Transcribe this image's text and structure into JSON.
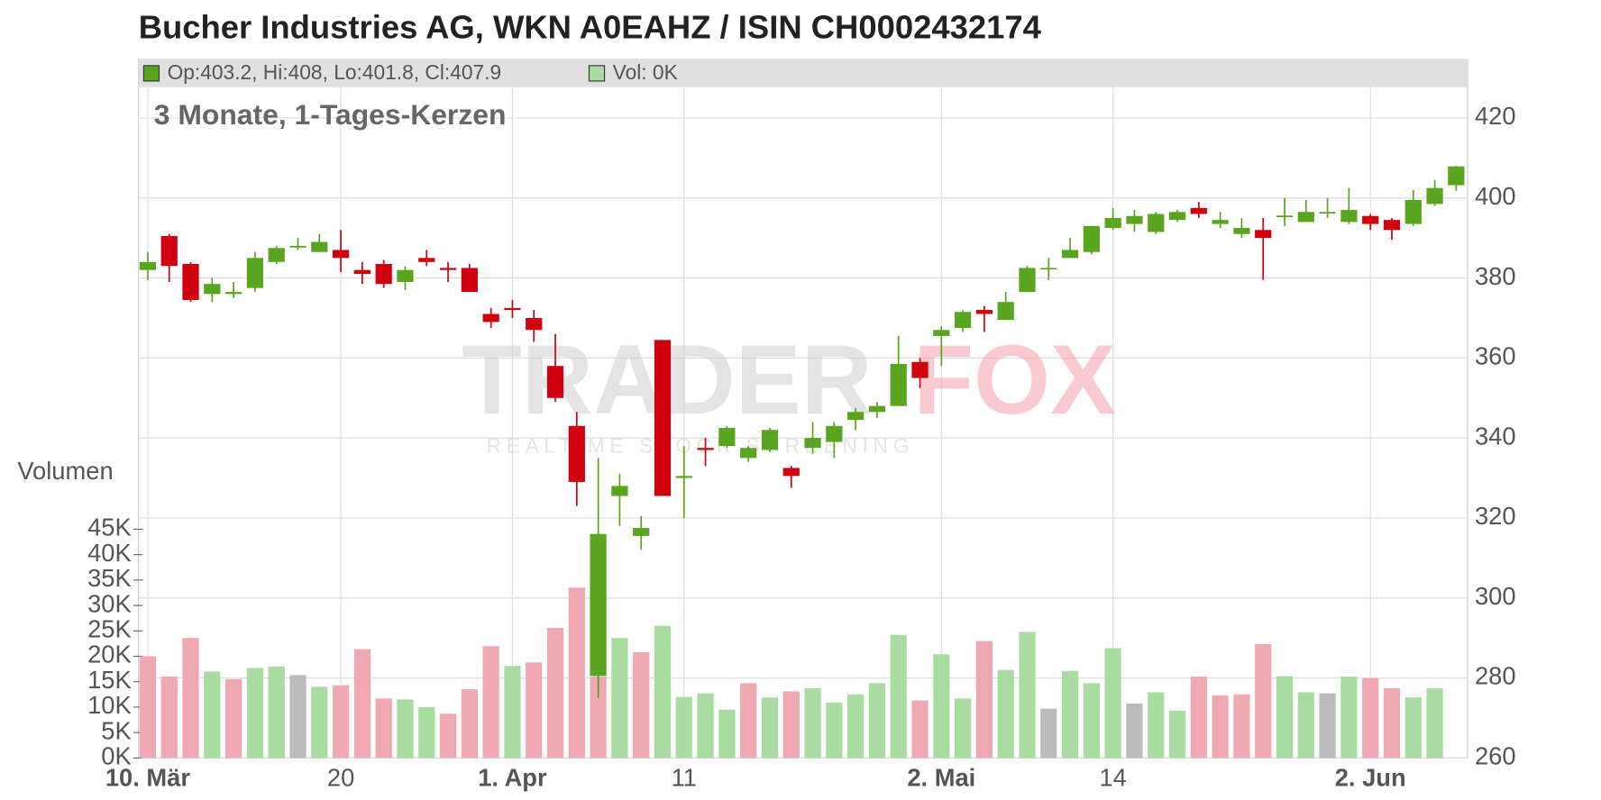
{
  "chart_data": {
    "type": "candlestick",
    "title": "Bucher Industries AG, WKN A0EAHZ / ISIN CH0002432174",
    "subtitle": "3 Monate, 1-Tages-Kerzen",
    "legend": {
      "candles": "Op:403.2, Hi:408, Lo:401.8, Cl:407.9",
      "volume": "Vol: 0K"
    },
    "volume_axis_label": "Volumen",
    "watermark": {
      "brand_a": "TRADER",
      "brand_b": "FOX",
      "tagline": "REALTIME STOCK SCREENING"
    },
    "categories": [
      "10. Mär",
      null,
      null,
      null,
      null,
      null,
      null,
      null,
      null,
      "20",
      null,
      null,
      null,
      null,
      null,
      null,
      null,
      "1. Apr",
      null,
      null,
      null,
      null,
      null,
      null,
      null,
      "11",
      null,
      null,
      null,
      null,
      null,
      null,
      null,
      null,
      null,
      null,
      null,
      "2. Mai",
      null,
      null,
      null,
      null,
      null,
      null,
      null,
      "14",
      null,
      null,
      null,
      null,
      null,
      null,
      null,
      null,
      null,
      null,
      null,
      "2. Jun",
      null,
      null,
      null,
      null
    ],
    "open": [
      382,
      390.5,
      383.5,
      376,
      376,
      377.5,
      384,
      388,
      386.5,
      387,
      382,
      383.5,
      379,
      385,
      382.5,
      382.5,
      371,
      372.5,
      370,
      358,
      343,
      280.5,
      325.5,
      315.5,
      364.5,
      330,
      337.5,
      338,
      335,
      337,
      332.5,
      337.5,
      339,
      344.5,
      346.5,
      348,
      359,
      365.5,
      367.5,
      372,
      369.5,
      376.5,
      382.5,
      385,
      386.5,
      392.5,
      393.5,
      391.5,
      394.5,
      397.5,
      393.5,
      391,
      392,
      395.3,
      394,
      396.5,
      394,
      395.5,
      394.5,
      393.5,
      398.5,
      403.2
    ],
    "high": [
      386.5,
      391,
      384,
      380,
      379,
      386.5,
      388,
      390,
      391,
      392,
      384,
      384.5,
      383,
      387,
      384,
      383.5,
      372.5,
      374.5,
      372,
      366,
      346.5,
      335,
      331,
      320.5,
      364.5,
      338,
      340,
      343,
      338,
      342.5,
      333,
      344,
      344,
      347.5,
      349,
      365.5,
      360,
      368,
      372,
      373,
      376.5,
      383,
      385,
      390,
      393,
      397.5,
      397,
      396.5,
      397,
      399,
      396.5,
      395,
      395,
      400,
      399.5,
      400,
      402.5,
      396,
      395,
      402,
      404.5,
      408
    ],
    "low": [
      379.5,
      379,
      374,
      374,
      375,
      376.5,
      383.5,
      387,
      386.5,
      381.5,
      378.5,
      377.5,
      377,
      383,
      379,
      376.5,
      367.5,
      370,
      364,
      349,
      323,
      275,
      318,
      312,
      325.5,
      320,
      333,
      337.5,
      334,
      336.5,
      327.5,
      336,
      335,
      342,
      345,
      348,
      352.5,
      358,
      366.5,
      366.5,
      369.5,
      376.5,
      379.5,
      385,
      386,
      392,
      391.5,
      391,
      394,
      395,
      392.5,
      390,
      379.5,
      393,
      394,
      395,
      393.5,
      392,
      389.5,
      393,
      398,
      401.8
    ],
    "close": [
      384,
      383,
      374.5,
      378.5,
      376.5,
      385,
      387.5,
      388,
      389,
      385,
      381,
      378.5,
      382,
      384,
      382,
      376.5,
      369,
      372,
      367,
      350,
      329,
      316,
      328,
      317.5,
      325.5,
      330.5,
      337,
      342.5,
      337.5,
      342,
      330.5,
      340,
      343,
      346.5,
      348,
      358.5,
      355,
      367,
      371.5,
      371,
      374,
      382.5,
      382.5,
      387,
      393,
      395,
      395.5,
      396,
      396.5,
      396,
      394.5,
      392.5,
      390,
      395.6,
      396.5,
      396.5,
      397,
      393.5,
      392,
      399.5,
      402.5,
      407.9
    ],
    "up_color": "#5aa520",
    "down_color": "#d0000f",
    "ylim": [
      260,
      427.7
    ],
    "yticks": [
      260,
      280,
      300,
      320,
      340,
      360,
      380,
      400,
      420
    ],
    "grid": true,
    "volume": {
      "values": [
        20000,
        16000,
        23600,
        17000,
        15500,
        17700,
        18000,
        16300,
        14000,
        14300,
        21400,
        11700,
        11500,
        10000,
        8700,
        13500,
        22000,
        18100,
        18800,
        25600,
        33500,
        16000,
        23600,
        20800,
        26000,
        12000,
        12700,
        9500,
        14700,
        11900,
        13100,
        13700,
        10900,
        12500,
        14700,
        24200,
        11300,
        20400,
        11700,
        23000,
        17300,
        24800,
        9700,
        17100,
        14700,
        21600,
        10700,
        12900,
        9300,
        16000,
        12300,
        12500,
        22400,
        16100,
        12900,
        12700,
        16000,
        15700,
        13700,
        11900,
        13700,
        0
      ],
      "colors": [
        "#f0a8b2",
        "#f0a8b2",
        "#f0a8b2",
        "#a8dca0",
        "#f0a8b2",
        "#a8dca0",
        "#a8dca0",
        "#bbbbbb",
        "#a8dca0",
        "#f0a8b2",
        "#f0a8b2",
        "#f0a8b2",
        "#a8dca0",
        "#a8dca0",
        "#f0a8b2",
        "#f0a8b2",
        "#f0a8b2",
        "#a8dca0",
        "#f0a8b2",
        "#f0a8b2",
        "#f0a8b2",
        "#f0a8b2",
        "#a8dca0",
        "#f0a8b2",
        "#a8dca0",
        "#a8dca0",
        "#a8dca0",
        "#a8dca0",
        "#f0a8b2",
        "#a8dca0",
        "#f0a8b2",
        "#a8dca0",
        "#a8dca0",
        "#a8dca0",
        "#a8dca0",
        "#a8dca0",
        "#f0a8b2",
        "#a8dca0",
        "#a8dca0",
        "#f0a8b2",
        "#a8dca0",
        "#a8dca0",
        "#bbbbbb",
        "#a8dca0",
        "#a8dca0",
        "#a8dca0",
        "#bbbbbb",
        "#a8dca0",
        "#a8dca0",
        "#f0a8b2",
        "#f0a8b2",
        "#f0a8b2",
        "#f0a8b2",
        "#a8dca0",
        "#a8dca0",
        "#bbbbbb",
        "#a8dca0",
        "#f0a8b2",
        "#f0a8b2",
        "#a8dca0",
        "#a8dca0",
        "#a8dca0"
      ],
      "ylim": [
        0,
        45000
      ],
      "yticks": [
        {
          "value": 0,
          "label": "0K"
        },
        {
          "value": 5000,
          "label": "5K"
        },
        {
          "value": 10000,
          "label": "10K"
        },
        {
          "value": 15000,
          "label": "15K"
        },
        {
          "value": 20000,
          "label": "20K"
        },
        {
          "value": 25000,
          "label": "25K"
        },
        {
          "value": 30000,
          "label": "30K"
        },
        {
          "value": 35000,
          "label": "35K"
        },
        {
          "value": 40000,
          "label": "40K"
        },
        {
          "value": 45000,
          "label": "45K"
        }
      ]
    }
  }
}
